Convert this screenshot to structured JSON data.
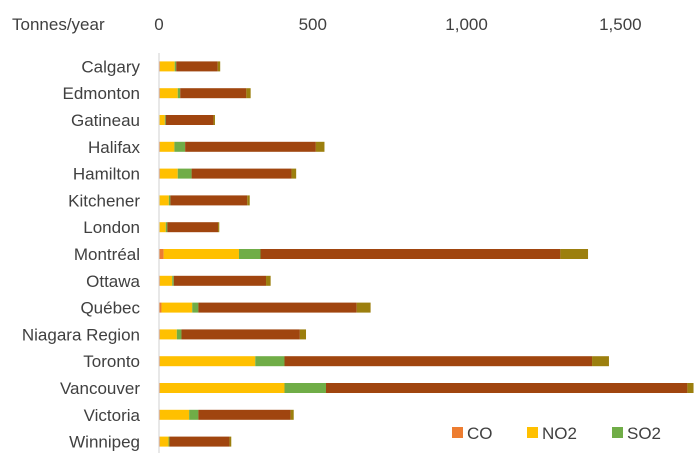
{
  "chart_data": {
    "type": "bar",
    "orientation": "horizontal",
    "stacked": true,
    "unit_label": "Tonnes/year",
    "x_ticks": [
      "0",
      "500",
      "1,000",
      "1,500"
    ],
    "x_tick_values": [
      0,
      500,
      1000,
      1500
    ],
    "xlim": [
      0,
      1720
    ],
    "grid": false,
    "legend_position": "bottom-right",
    "categories": [
      "Calgary",
      "Edmonton",
      "Gatineau",
      "Halifax",
      "Hamilton",
      "Kitchener",
      "London",
      "Montréal",
      "Ottawa",
      "Québec",
      "Niagara Region",
      "Toronto",
      "Vancouver",
      "Victoria",
      "Winnipeg"
    ],
    "series": [
      {
        "name": "CO",
        "color": "#ED7D31",
        "values": [
          3,
          3,
          2,
          3,
          3,
          2,
          2,
          15,
          3,
          8,
          3,
          3,
          3,
          3,
          3
        ]
      },
      {
        "name": "NO2",
        "color": "#FFC000",
        "values": [
          48,
          58,
          17,
          47,
          58,
          30,
          20,
          245,
          40,
          100,
          55,
          310,
          405,
          95,
          28
        ]
      },
      {
        "name": "SO2",
        "color": "#70AD47",
        "values": [
          5,
          8,
          3,
          35,
          45,
          5,
          5,
          70,
          5,
          20,
          15,
          95,
          135,
          30,
          3
        ]
      },
      {
        "name": "",
        "color": "#A0450F",
        "values": [
          135,
          215,
          155,
          425,
          325,
          250,
          165,
          975,
          300,
          515,
          385,
          1000,
          1175,
          300,
          195
        ]
      },
      {
        "name": "",
        "color": "#9C7F0E",
        "values": [
          8,
          14,
          5,
          28,
          15,
          8,
          4,
          90,
          15,
          45,
          20,
          55,
          20,
          10,
          6
        ]
      }
    ]
  }
}
